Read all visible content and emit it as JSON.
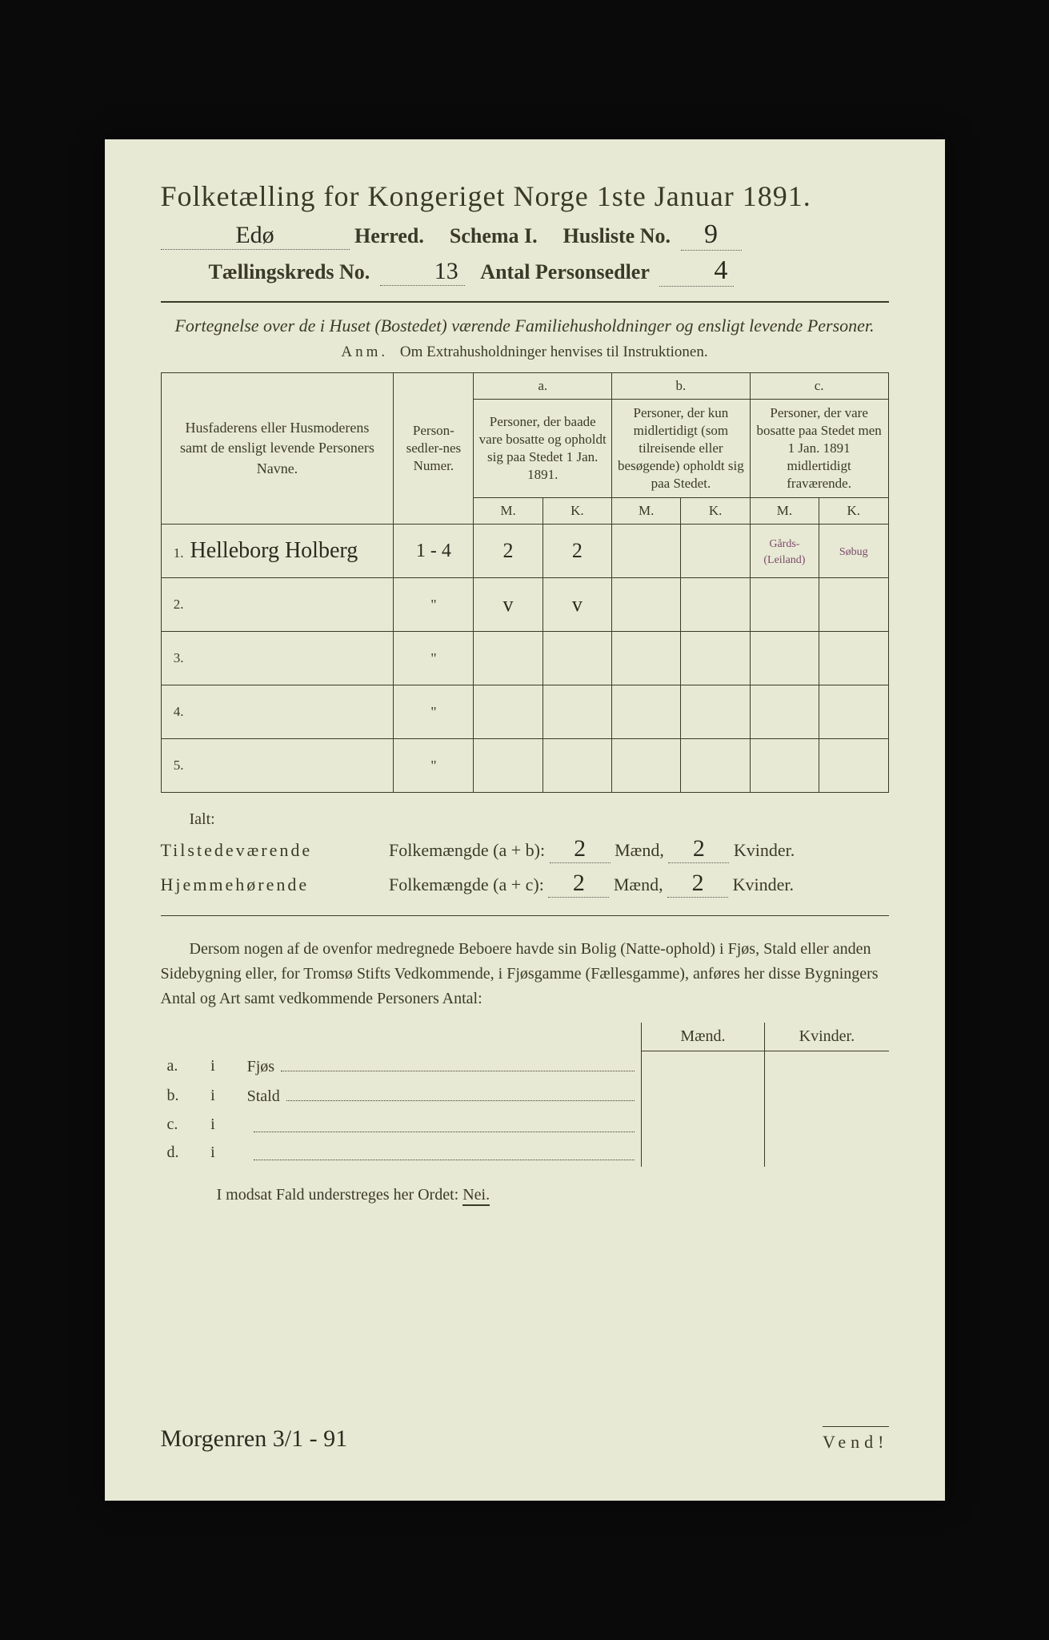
{
  "title": "Folketælling for Kongeriget Norge 1ste Januar 1891.",
  "header": {
    "herred_value": "Edø",
    "herred_label": "Herred.",
    "schema_label": "Schema I.",
    "husliste_label": "Husliste No.",
    "husliste_value": "9",
    "kreds_label": "Tællingskreds No.",
    "kreds_value": "13",
    "antal_label": "Antal Personsedler",
    "antal_value": "4"
  },
  "fortegnelse": "Fortegnelse over de i Huset (Bostedet) værende Familiehusholdninger og ensligt levende Personer.",
  "anm_label": "Anm.",
  "anm_text": "Om Extrahusholdninger henvises til Instruktionen.",
  "table": {
    "col_name": "Husfaderens eller Husmoderens samt de ensligt levende Personers Navne.",
    "col_num": "Person-sedler-nes Numer.",
    "col_a_label": "a.",
    "col_a_desc": "Personer, der baade vare bosatte og opholdt sig paa Stedet 1 Jan. 1891.",
    "col_b_label": "b.",
    "col_b_desc": "Personer, der kun midlertidigt (som tilreisende eller besøgende) opholdt sig paa Stedet.",
    "col_c_label": "c.",
    "col_c_desc": "Personer, der vare bosatte paa Stedet men 1 Jan. 1891 midlertidigt fraværende.",
    "m": "M.",
    "k": "K.",
    "rows": [
      {
        "n": "1.",
        "name": "Helleborg Holberg",
        "num": "1 - 4",
        "a_m": "2",
        "a_k": "2",
        "b_m": "",
        "b_k": "",
        "c_m": "Gårds- (Leiland)",
        "c_k": "Søbug"
      },
      {
        "n": "2.",
        "name": "",
        "num": "\"",
        "a_m": "v",
        "a_k": "v",
        "b_m": "",
        "b_k": "",
        "c_m": "",
        "c_k": ""
      },
      {
        "n": "3.",
        "name": "",
        "num": "\"",
        "a_m": "",
        "a_k": "",
        "b_m": "",
        "b_k": "",
        "c_m": "",
        "c_k": ""
      },
      {
        "n": "4.",
        "name": "",
        "num": "\"",
        "a_m": "",
        "a_k": "",
        "b_m": "",
        "b_k": "",
        "c_m": "",
        "c_k": ""
      },
      {
        "n": "5.",
        "name": "",
        "num": "\"",
        "a_m": "",
        "a_k": "",
        "b_m": "",
        "b_k": "",
        "c_m": "",
        "c_k": ""
      }
    ]
  },
  "ialt": "Ialt:",
  "sum": {
    "tilst_label": "Tilstedeværende",
    "folke_label": "Folkemængde",
    "ab": "(a + b):",
    "ac": "(a + c):",
    "hjem_label": "Hjemmehørende",
    "maend": "Mænd,",
    "kvinder": "Kvinder.",
    "ab_m": "2",
    "ab_k": "2",
    "ac_m": "2",
    "ac_k": "2"
  },
  "para": "Dersom nogen af de ovenfor medregnede Beboere havde sin Bolig (Natte-ophold) i Fjøs, Stald eller anden Sidebygning eller, for Tromsø Stifts Vedkommende, i Fjøsgamme (Fællesgamme), anføres her disse Bygningers Antal og Art samt vedkommende Personers Antal:",
  "fjos": {
    "maend": "Mænd.",
    "kvinder": "Kvinder.",
    "rows": [
      {
        "l": "a.",
        "i": "i",
        "t": "Fjøs"
      },
      {
        "l": "b.",
        "i": "i",
        "t": "Stald"
      },
      {
        "l": "c.",
        "i": "i",
        "t": ""
      },
      {
        "l": "d.",
        "i": "i",
        "t": ""
      }
    ]
  },
  "nei_line_pre": "I modsat Fald understreges her Ordet:",
  "nei": "Nei.",
  "signature": "Morgenren 3/1 - 91",
  "vend": "Vend!"
}
